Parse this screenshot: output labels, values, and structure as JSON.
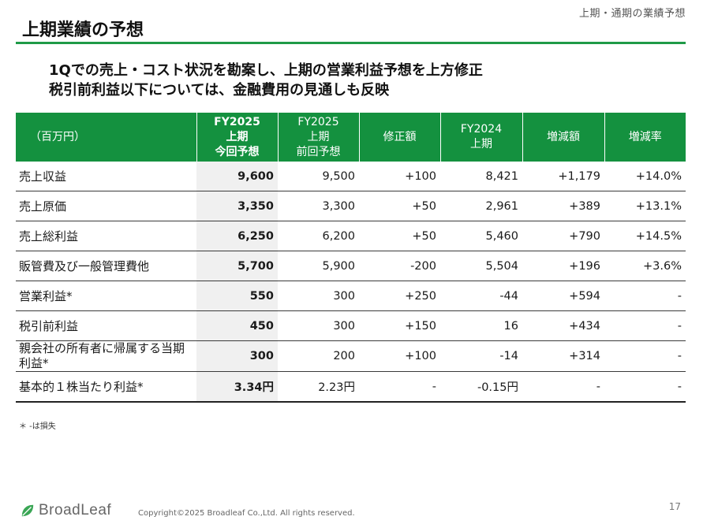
{
  "section_tag": "上期・通期の業績予想",
  "title": "上期業績の予想",
  "headline": [
    "1Qでの売上・コスト状況を勘案し、上期の営業利益予想を上方修正",
    "税引前利益以下については、金融費用の見通しも反映"
  ],
  "table": {
    "unit_label": "（百万円）",
    "columns": [
      {
        "line1": "FY2025",
        "line2": "上期",
        "line3": "今回予想"
      },
      {
        "line1": "FY2025",
        "line2": "上期",
        "line3": "前回予想"
      },
      {
        "line1": "修正額",
        "line2": "",
        "line3": ""
      },
      {
        "line1": "FY2024",
        "line2": "上期",
        "line3": ""
      },
      {
        "line1": "増減額",
        "line2": "",
        "line3": ""
      },
      {
        "line1": "増減率",
        "line2": "",
        "line3": ""
      }
    ],
    "rows": [
      {
        "label": "売上収益",
        "values": [
          "9,600",
          "9,500",
          "+100",
          "8,421",
          "+1,179",
          "+14.0%"
        ]
      },
      {
        "label": "売上原価",
        "values": [
          "3,350",
          "3,300",
          "+50",
          "2,961",
          "+389",
          "+13.1%"
        ]
      },
      {
        "label": "売上総利益",
        "values": [
          "6,250",
          "6,200",
          "+50",
          "5,460",
          "+790",
          "+14.5%"
        ]
      },
      {
        "label": "販管費及び一般管理費他",
        "values": [
          "5,700",
          "5,900",
          "-200",
          "5,504",
          "+196",
          "+3.6%"
        ]
      },
      {
        "label": "営業利益*",
        "values": [
          "550",
          "300",
          "+250",
          "-44",
          "+594",
          "-"
        ]
      },
      {
        "label": "税引前利益",
        "values": [
          "450",
          "300",
          "+150",
          "16",
          "+434",
          "-"
        ]
      },
      {
        "label": "親会社の所有者に帰属する当期利益*",
        "values": [
          "300",
          "200",
          "+100",
          "-14",
          "+314",
          "-"
        ]
      },
      {
        "label": "基本的１株当たり利益*",
        "values": [
          "3.34円",
          "2.23円",
          "-",
          "-0.15円",
          "-",
          "-"
        ]
      }
    ]
  },
  "footnote": "＊ -は損失",
  "footer": {
    "brand": "BroadLeaf",
    "copyright": "Copyright©2025 Broadleaf Co.,Ltd. All rights reserved.",
    "page_number": "17"
  },
  "colors": {
    "accent": "#14913f",
    "rule": "#1f9a48"
  },
  "icons": {
    "logo": "leaf-icon"
  }
}
